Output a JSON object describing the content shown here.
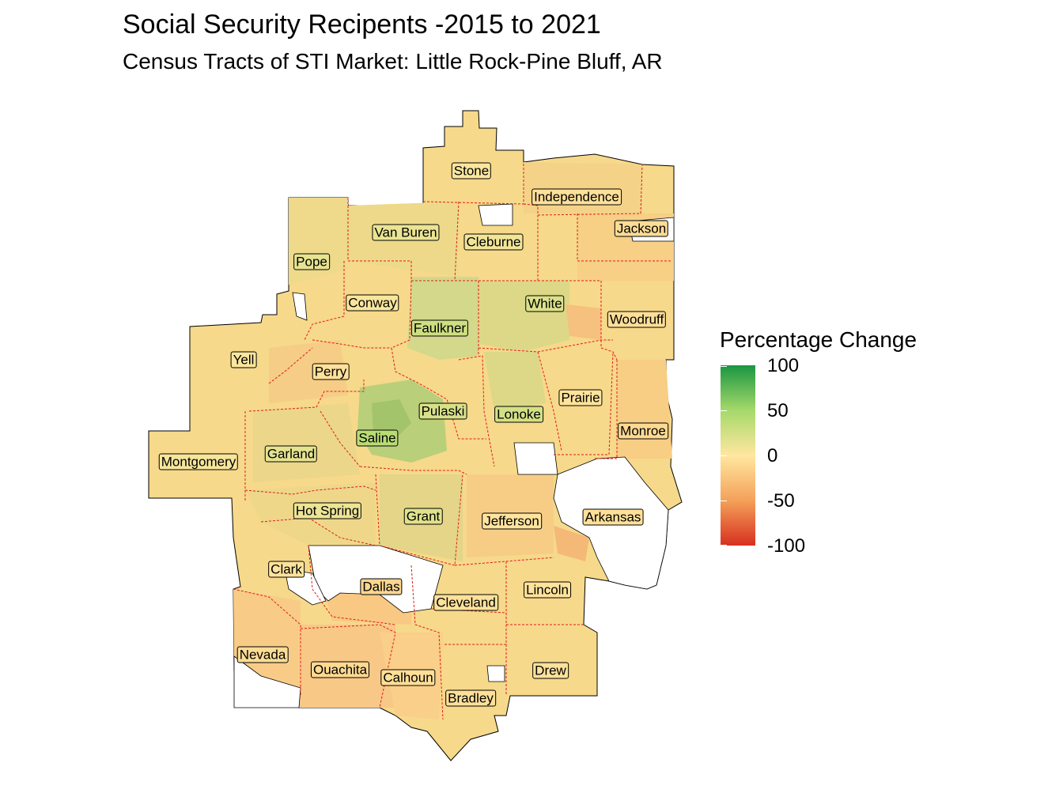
{
  "title": "Social Security Recipents -2015 to 2021",
  "subtitle": "Census Tracts of STI Market: Little Rock-Pine Bluff, AR",
  "legend": {
    "title": "Percentage Change",
    "ticks": [
      "100",
      "50",
      "0",
      "-50",
      "-100"
    ],
    "scale_range": [
      -100,
      100
    ],
    "colors": {
      "high": "#1a9641",
      "mid_high": "#a6d96a",
      "mid": "#ffe7a0",
      "mid_low": "#f4a15a",
      "low": "#d7301f"
    }
  },
  "colors": {
    "boundary": "#e31a1c",
    "base_fill": "#f6d98a",
    "outline": "#000000"
  },
  "counties": [
    {
      "name": "Stone",
      "value": 2
    },
    {
      "name": "Independence",
      "value": -5
    },
    {
      "name": "Van Buren",
      "value": 12
    },
    {
      "name": "Cleburne",
      "value": 8
    },
    {
      "name": "Jackson",
      "value": -8
    },
    {
      "name": "Pope",
      "value": 14
    },
    {
      "name": "Conway",
      "value": 4
    },
    {
      "name": "White",
      "value": 20
    },
    {
      "name": "Faulkner",
      "value": 28
    },
    {
      "name": "Woodruff",
      "value": -6
    },
    {
      "name": "Yell",
      "value": 3
    },
    {
      "name": "Perry",
      "value": -4
    },
    {
      "name": "Prairie",
      "value": -3
    },
    {
      "name": "Pulaski",
      "value": 22
    },
    {
      "name": "Lonoke",
      "value": 25
    },
    {
      "name": "Monroe",
      "value": -10
    },
    {
      "name": "Saline",
      "value": 40
    },
    {
      "name": "Garland",
      "value": 15
    },
    {
      "name": "Montgomery",
      "value": 5
    },
    {
      "name": "Hot Spring",
      "value": 10
    },
    {
      "name": "Grant",
      "value": 18
    },
    {
      "name": "Jefferson",
      "value": -2
    },
    {
      "name": "Arkansas",
      "value": -5
    },
    {
      "name": "Clark",
      "value": -3
    },
    {
      "name": "Dallas",
      "value": -12
    },
    {
      "name": "Cleveland",
      "value": -4
    },
    {
      "name": "Lincoln",
      "value": -3
    },
    {
      "name": "Nevada",
      "value": -8
    },
    {
      "name": "Ouachita",
      "value": -10
    },
    {
      "name": "Calhoun",
      "value": -6
    },
    {
      "name": "Drew",
      "value": -4
    },
    {
      "name": "Bradley",
      "value": -5
    }
  ]
}
